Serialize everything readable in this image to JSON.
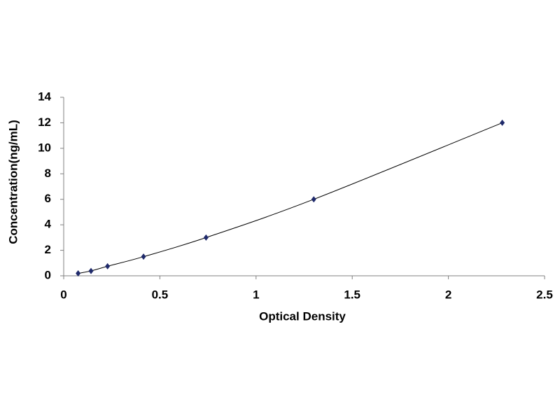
{
  "chart_data": {
    "type": "line",
    "x_label": "Optical Density",
    "y_label": "Concentration(ng/mL)",
    "x": [
      0.075,
      0.142,
      0.228,
      0.415,
      0.74,
      1.3,
      2.28
    ],
    "values": [
      0.19,
      0.38,
      0.75,
      1.5,
      3,
      6,
      12
    ],
    "color": "#1f2a6b",
    "line_color": "#000000",
    "xlim": [
      0,
      2.5
    ],
    "xticks": [
      0,
      0.5,
      1,
      1.5,
      2,
      2.5
    ],
    "ylim": [
      0,
      14
    ],
    "yticks": [
      0,
      2,
      4,
      6,
      8,
      10,
      12,
      14
    ],
    "grid": false
  }
}
